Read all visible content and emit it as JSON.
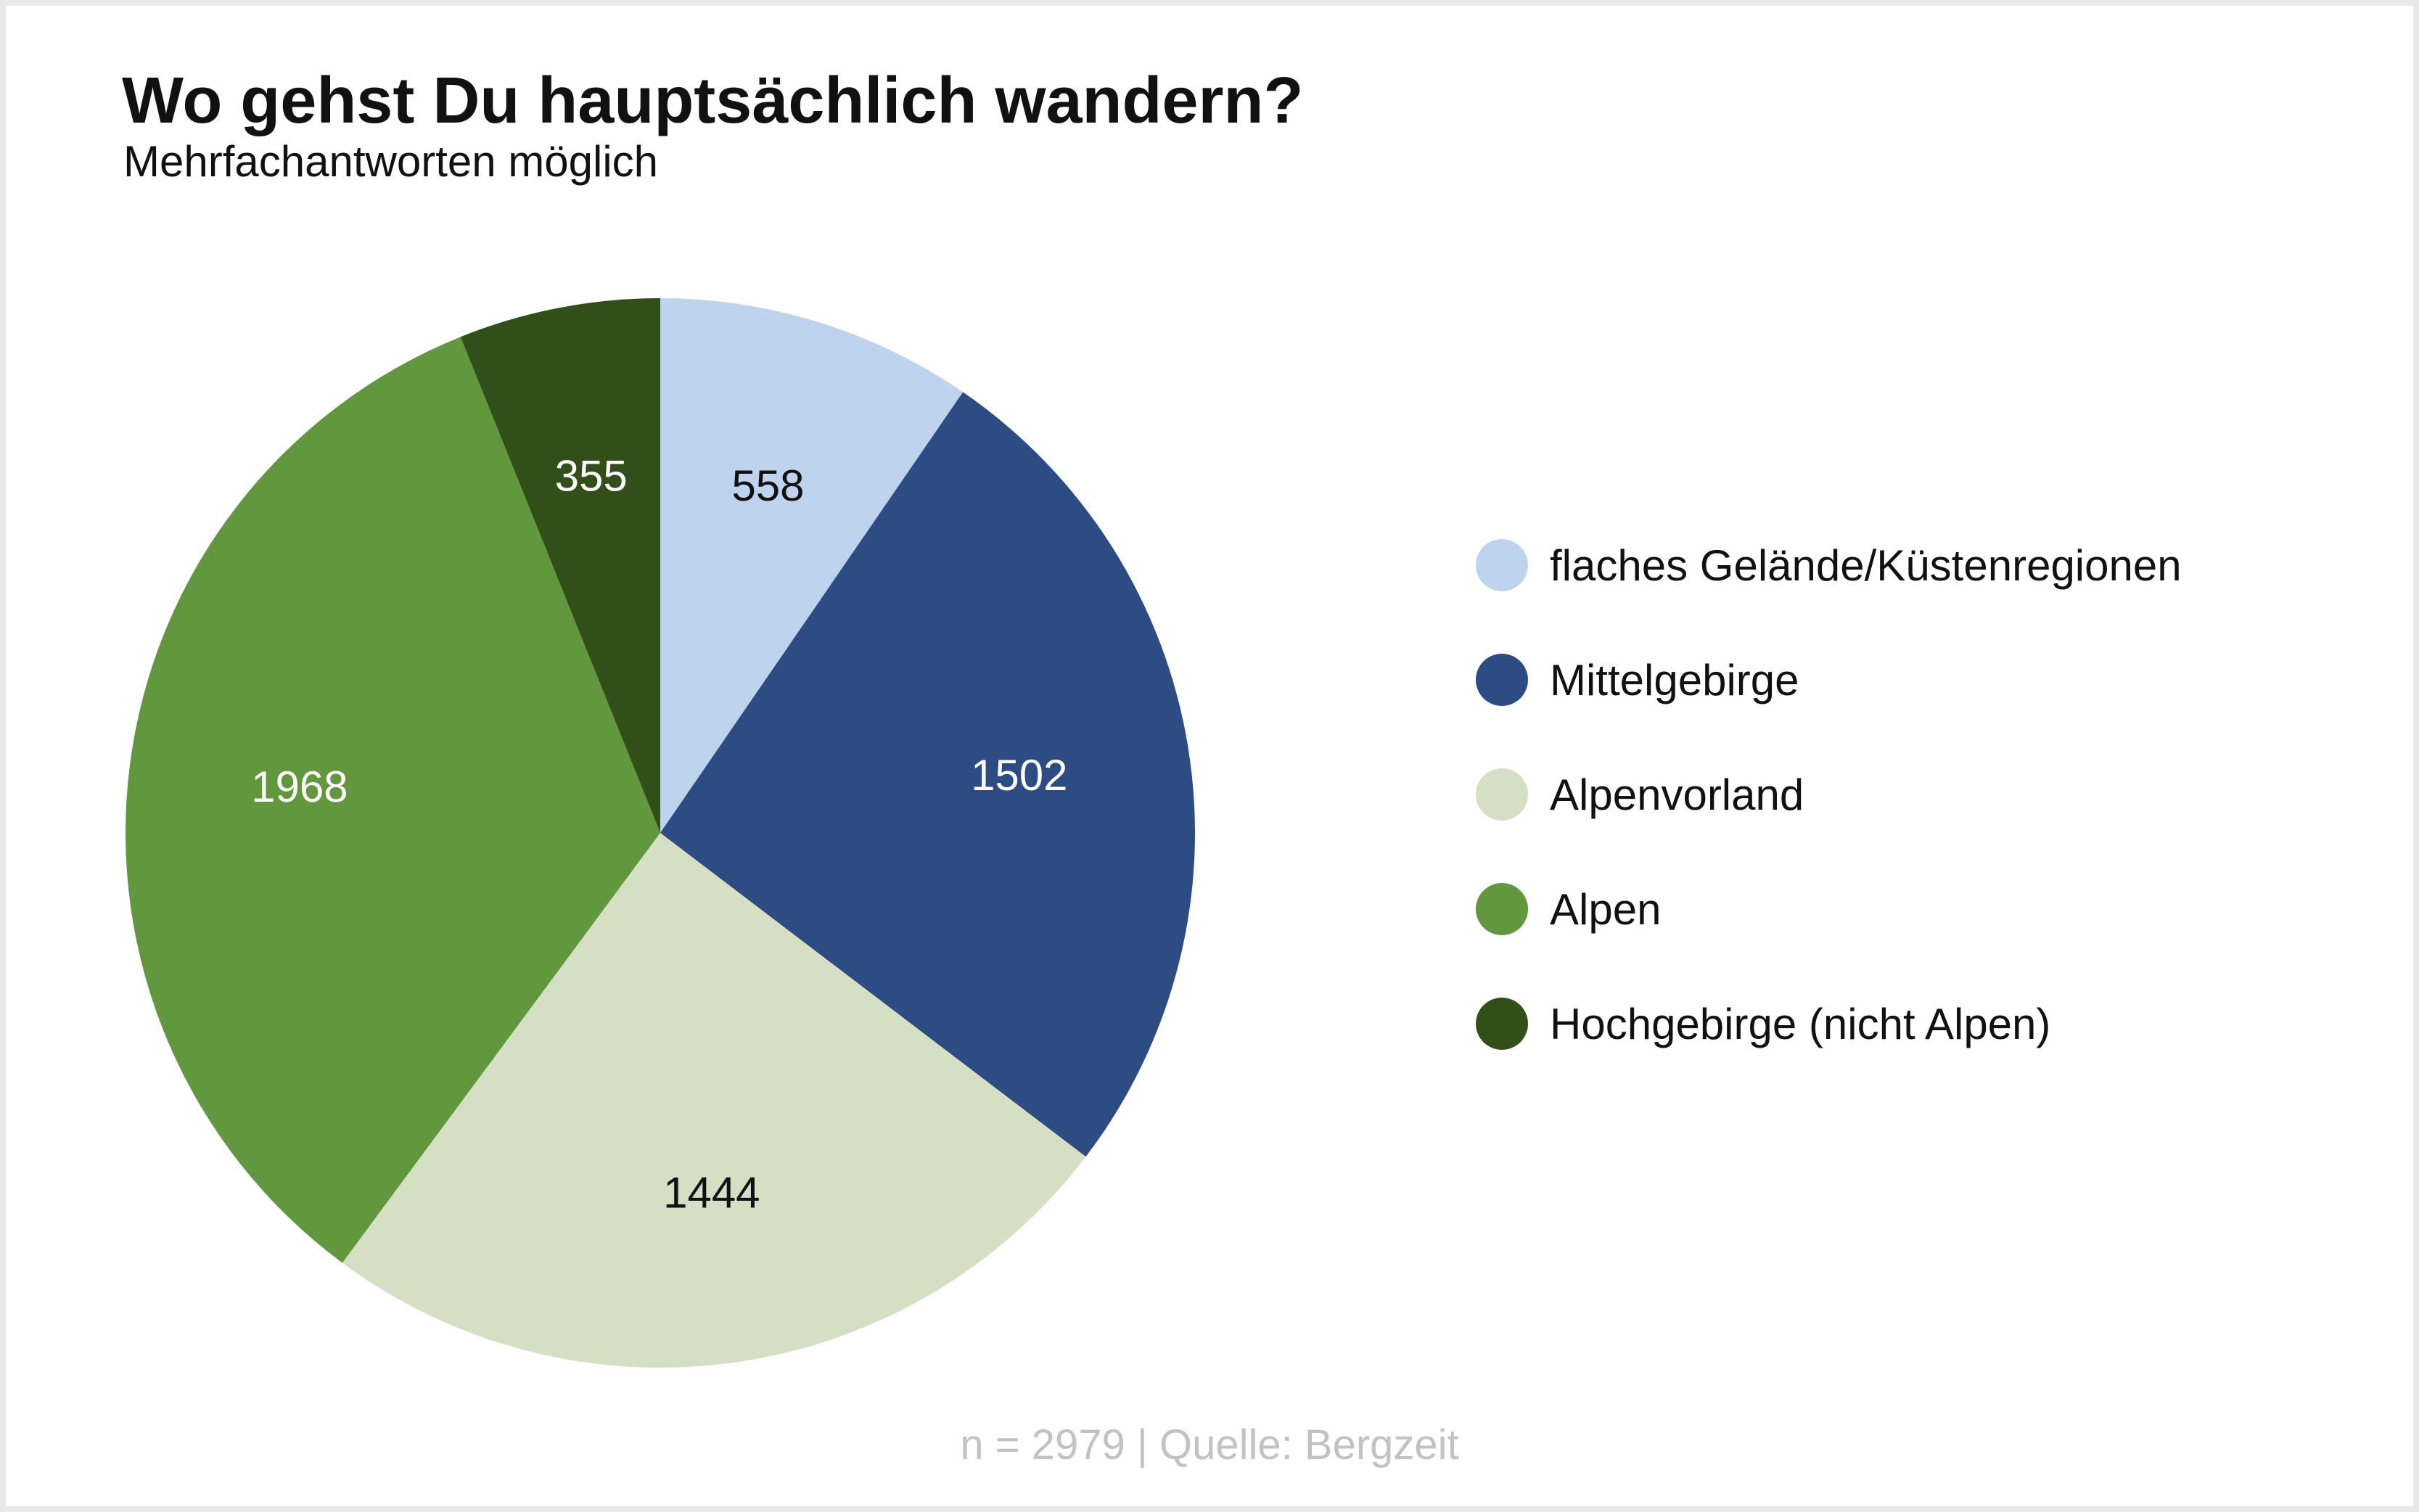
{
  "chart_data": {
    "type": "pie",
    "title": "Wo gehst Du hauptsächlich wandern?",
    "subtitle": "Mehrfachantworten möglich",
    "categories": [
      "flaches Gelände/Küstenregionen",
      "Mittelgebirge",
      "Alpenvorland",
      "Alpen",
      "Hochgebirge (nicht Alpen)"
    ],
    "values": [
      558,
      1502,
      1444,
      1968,
      355
    ],
    "value_labels": [
      "558",
      "1502",
      "1444",
      "1968",
      "355"
    ],
    "colors": [
      "#bed3ed",
      "#2e4c84",
      "#d4dfc3",
      "#62983d",
      "#324f1a"
    ],
    "label_colors": [
      "#111111",
      "#ffffff",
      "#111111",
      "#ffffff",
      "#ffffff"
    ],
    "start_angle": "12 o'clock",
    "direction": "clockwise",
    "legend_position": "right",
    "footer": "n = 2979 | Quelle: Bergzeit"
  }
}
